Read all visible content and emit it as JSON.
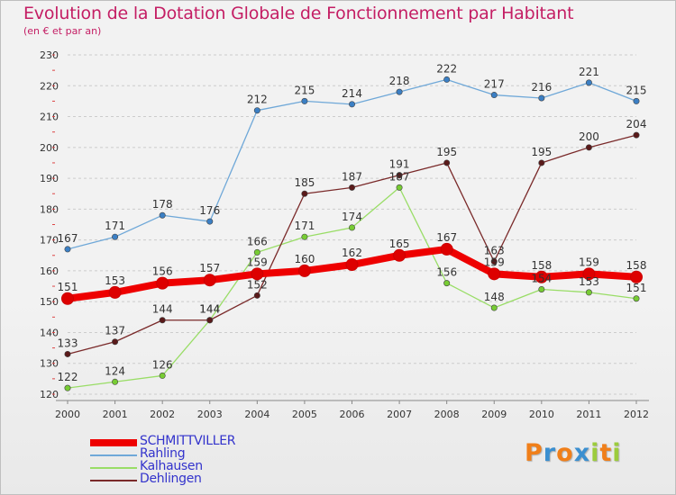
{
  "header": {
    "title": "Evolution de la Dotation Globale de Fonctionnement par Habitant",
    "subtitle": "(en € et par an)"
  },
  "logo": {
    "text": "Proxiti",
    "letters": [
      {
        "ch": "P",
        "color": "#f07f1a"
      },
      {
        "ch": "r",
        "color": "#3b8fd0"
      },
      {
        "ch": "o",
        "color": "#f07f1a"
      },
      {
        "ch": "x",
        "color": "#3b8fd0"
      },
      {
        "ch": "i",
        "color": "#9ccc3c"
      },
      {
        "ch": "t",
        "color": "#f07f1a"
      },
      {
        "ch": "i",
        "color": "#9ccc3c"
      }
    ]
  },
  "colors": {
    "title": "#c41e64",
    "legend_text": "#3333cc",
    "grid": "#cccccc",
    "axis": "#888888"
  },
  "chart_data": {
    "type": "line",
    "x": [
      "2000",
      "2001",
      "2002",
      "2003",
      "2004",
      "2005",
      "2006",
      "2007",
      "2008",
      "2009",
      "2010",
      "2011",
      "2012"
    ],
    "ylim": [
      120,
      230
    ],
    "yticks": [
      120,
      130,
      140,
      150,
      160,
      170,
      180,
      190,
      200,
      210,
      220,
      230
    ],
    "grid": "horizontal dashed",
    "legend_position": "bottom-left",
    "series": [
      {
        "name": "SCHMITTVILLER",
        "color": "#ee0000",
        "marker": "#dd0000",
        "thick": true,
        "values": [
          151,
          153,
          156,
          157,
          159,
          160,
          162,
          165,
          167,
          159,
          158,
          159,
          158
        ]
      },
      {
        "name": "Rahling",
        "color": "#6fa8d8",
        "marker": "#3b7fc4",
        "thick": false,
        "values": [
          167,
          171,
          178,
          176,
          212,
          215,
          214,
          218,
          222,
          217,
          216,
          221,
          215
        ]
      },
      {
        "name": "Kalhausen",
        "color": "#99dd66",
        "marker": "#77cc33",
        "thick": false,
        "values": [
          122,
          124,
          126,
          144,
          166,
          171,
          174,
          187,
          156,
          148,
          154,
          153,
          151
        ]
      },
      {
        "name": "Dehlingen",
        "color": "#7a2a2a",
        "marker": "#5a1a1a",
        "thick": false,
        "values": [
          133,
          137,
          144,
          144,
          152,
          185,
          187,
          191,
          195,
          163,
          195,
          200,
          204
        ]
      }
    ]
  }
}
